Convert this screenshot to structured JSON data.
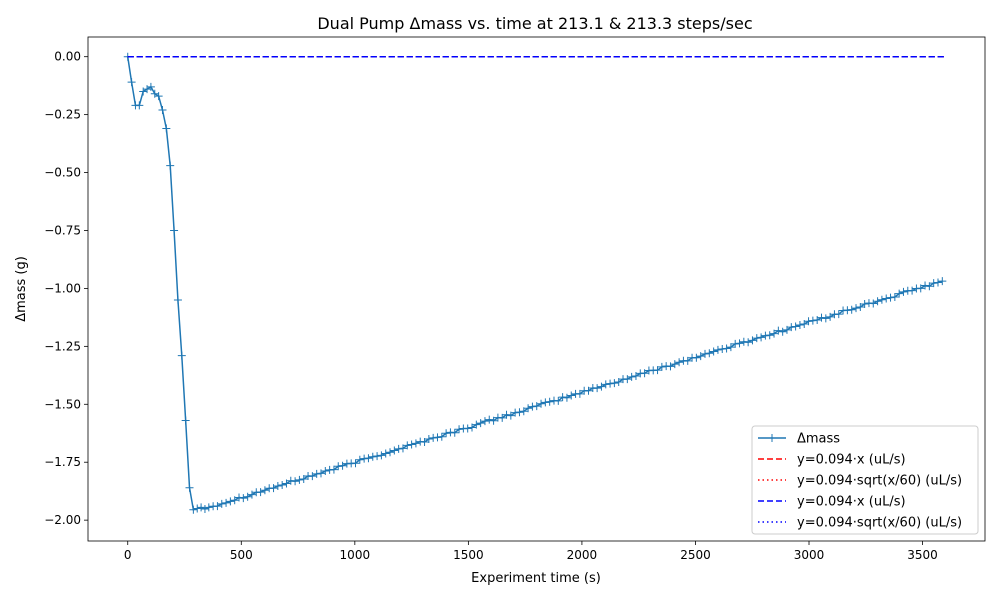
{
  "chart_data": {
    "type": "line",
    "title": "Dual Pump Δmass vs. time at 213.1 & 213.3 steps/sec",
    "xlabel": "Experiment time (s)",
    "ylabel": "Δmass (g)",
    "xlim": [
      -175,
      3775
    ],
    "ylim": [
      -2.09,
      0.085
    ],
    "xticks": [
      0,
      500,
      1000,
      1500,
      2000,
      2500,
      3000,
      3500
    ],
    "xtick_labels": [
      "0",
      "500",
      "1000",
      "1500",
      "2000",
      "2500",
      "3000",
      "3500"
    ],
    "yticks": [
      0.0,
      -0.25,
      -0.5,
      -0.75,
      -1.0,
      -1.25,
      -1.5,
      -1.75,
      -2.0
    ],
    "ytick_labels": [
      "0.00",
      "−0.25",
      "−0.50",
      "−0.75",
      "−1.00",
      "−1.25",
      "−1.50",
      "−1.75",
      "−2.00"
    ],
    "grid": false,
    "legend_position": "bottom-right",
    "series": [
      {
        "name": "Δmass",
        "color": "#1f77b4",
        "style": "solid",
        "marker": "+",
        "points": [
          [
            0,
            0.0
          ],
          [
            17,
            -0.11
          ],
          [
            34,
            -0.21
          ],
          [
            51,
            -0.21
          ],
          [
            68,
            -0.15
          ],
          [
            85,
            -0.14
          ],
          [
            102,
            -0.13
          ],
          [
            119,
            -0.16
          ],
          [
            136,
            -0.17
          ],
          [
            153,
            -0.23
          ],
          [
            170,
            -0.31
          ],
          [
            187,
            -0.47
          ],
          [
            204,
            -0.75
          ],
          [
            221,
            -1.05
          ],
          [
            238,
            -1.29
          ],
          [
            255,
            -1.57
          ],
          [
            272,
            -1.86
          ],
          [
            289,
            -1.955
          ],
          [
            306,
            -1.95
          ],
          [
            323,
            -1.945
          ],
          [
            340,
            -1.952
          ],
          [
            357,
            -1.945
          ]
        ],
        "linear_start": [
          357,
          -1.945
        ],
        "linear_end": [
          3600,
          -0.965
        ],
        "linear_step": 19,
        "noise": 0.006
      },
      {
        "name": "y=0.094·x (uL/s)",
        "color": "#ff0000",
        "style": "dashed",
        "points": [
          [
            0,
            0.0
          ],
          [
            3600,
            0.0
          ]
        ]
      },
      {
        "name": "y=0.094·sqrt(x/60) (uL/s)",
        "color": "#ff0000",
        "style": "dotted",
        "points": [
          [
            0,
            0.0
          ],
          [
            3600,
            0.0
          ]
        ]
      },
      {
        "name": "y=0.094·x (uL/s)",
        "color": "#0000ff",
        "style": "dashed",
        "points": [
          [
            0,
            0.0
          ],
          [
            3600,
            0.0
          ]
        ]
      },
      {
        "name": "y=0.094·sqrt(x/60) (uL/s)",
        "color": "#0000ff",
        "style": "dotted",
        "points": [
          [
            0,
            0.0
          ],
          [
            3600,
            0.0
          ]
        ]
      }
    ]
  }
}
